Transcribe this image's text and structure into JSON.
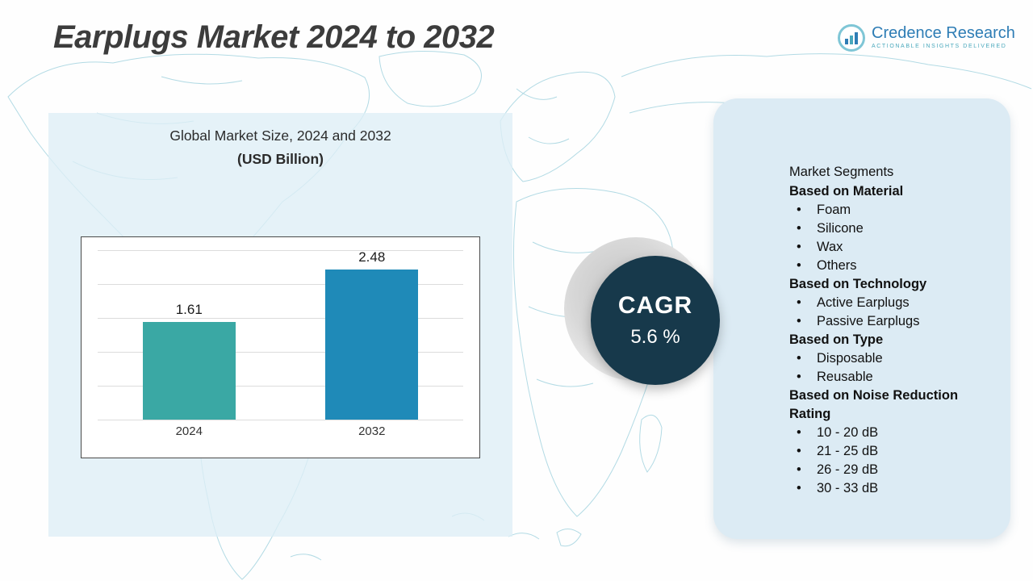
{
  "header": {
    "title": "Earplugs Market 2024 to 2032",
    "logo": {
      "brand": "Credence Research",
      "tagline": "Actionable Insights Delivered"
    }
  },
  "chart_panel": {
    "title_line1": "Global Market Size, 2024 and 2032",
    "title_line2": "(USD Billion)"
  },
  "chart_data": {
    "type": "bar",
    "title": "Global Market Size, 2024 and 2032 (USD Billion)",
    "categories": [
      "2024",
      "2032"
    ],
    "values": [
      1.61,
      2.48
    ],
    "value_labels": [
      "1.61",
      "2.48"
    ],
    "xlabel": "",
    "ylabel": "USD Billion",
    "ylim": [
      0,
      2.8
    ],
    "grid": true,
    "legend": "none",
    "bar_colors": [
      "#3aa8a4",
      "#1f8ab8"
    ]
  },
  "cagr": {
    "label": "CAGR",
    "value": "5.6 %"
  },
  "segments": {
    "title": "Market Segments",
    "items": [
      {
        "type": "header",
        "text": "Based on Material"
      },
      {
        "type": "bullet",
        "text": "Foam"
      },
      {
        "type": "bullet",
        "text": "Silicone"
      },
      {
        "type": "bullet",
        "text": "Wax"
      },
      {
        "type": "bullet",
        "text": "Others"
      },
      {
        "type": "header",
        "text": "Based on Technology"
      },
      {
        "type": "bullet",
        "text": "Active Earplugs"
      },
      {
        "type": "bullet",
        "text": "Passive Earplugs"
      },
      {
        "type": "header",
        "text": "Based on Type"
      },
      {
        "type": "bullet",
        "text": "Disposable"
      },
      {
        "type": "bullet",
        "text": "Reusable"
      },
      {
        "type": "header",
        "text": "Based on Noise Reduction Rating"
      },
      {
        "type": "bullet",
        "text": "10 - 20 dB"
      },
      {
        "type": "bullet",
        "text": "21 - 25 dB"
      },
      {
        "type": "bullet",
        "text": "26 - 29 dB"
      },
      {
        "type": "bullet",
        "text": "30 - 33 dB"
      }
    ]
  },
  "colors": {
    "bar_2024": "#3aa8a4",
    "bar_2032": "#1f8ab8",
    "cagr_circle": "#17394b",
    "right_panel_bg": "#dcebf4",
    "left_panel_bg": "#deeef6",
    "map_line": "#99cfdc",
    "brand_blue": "#2e7db5",
    "title_gray": "#3c3c3c"
  }
}
